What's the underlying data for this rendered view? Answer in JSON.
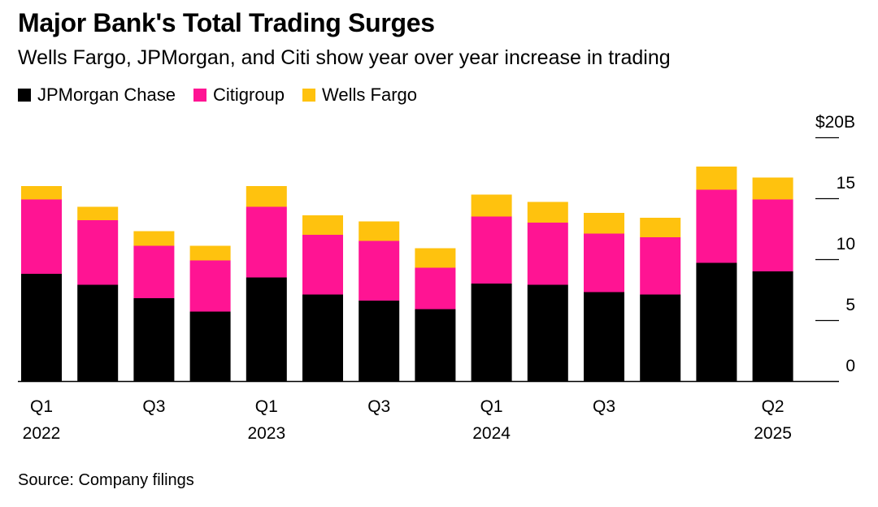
{
  "title": "Major Bank's Total Trading Surges",
  "subtitle": "Wells Fargo, JPMorgan, and Citi show year over year increase in trading",
  "source": "Source: Company filings",
  "colors": {
    "jpmorgan": "#000000",
    "citigroup": "#ff1493",
    "wellsfargo": "#ffc20e"
  },
  "chart_data": {
    "type": "bar",
    "stacked": true,
    "categories": [
      "Q1 2022",
      "Q2 2022",
      "Q3 2022",
      "Q4 2022",
      "Q1 2023",
      "Q2 2023",
      "Q3 2023",
      "Q4 2023",
      "Q1 2024",
      "Q2 2024",
      "Q3 2024",
      "Q4 2024",
      "Q1 2025",
      "Q2 2025"
    ],
    "series": [
      {
        "name": "JPMorgan Chase",
        "color": "#000000",
        "values": [
          8.8,
          7.9,
          6.8,
          5.7,
          8.5,
          7.1,
          6.6,
          5.9,
          8.0,
          7.9,
          7.3,
          7.1,
          9.7,
          9.0
        ]
      },
      {
        "name": "Citigroup",
        "color": "#ff1493",
        "values": [
          6.1,
          5.3,
          4.3,
          4.2,
          5.8,
          4.9,
          4.9,
          3.4,
          5.5,
          5.1,
          4.8,
          4.7,
          6.0,
          5.9
        ]
      },
      {
        "name": "Wells Fargo",
        "color": "#ffc20e",
        "values": [
          1.1,
          1.1,
          1.2,
          1.2,
          1.7,
          1.6,
          1.6,
          1.6,
          1.8,
          1.7,
          1.7,
          1.6,
          1.9,
          1.8
        ]
      }
    ],
    "ylim": [
      0,
      20
    ],
    "yticks": [
      {
        "value": 20,
        "label": "$20B"
      },
      {
        "value": 15,
        "label": "15"
      },
      {
        "value": 10,
        "label": "10"
      },
      {
        "value": 5,
        "label": "5"
      },
      {
        "value": 0,
        "label": "0"
      }
    ],
    "xtick_labels": [
      {
        "index": 0,
        "line1": "Q1",
        "line2": "2022"
      },
      {
        "index": 2,
        "line1": "Q3",
        "line2": ""
      },
      {
        "index": 4,
        "line1": "Q1",
        "line2": "2023"
      },
      {
        "index": 6,
        "line1": "Q3",
        "line2": ""
      },
      {
        "index": 8,
        "line1": "Q1",
        "line2": "2024"
      },
      {
        "index": 10,
        "line1": "Q3",
        "line2": ""
      },
      {
        "index": 13,
        "line1": "Q2",
        "line2": "2025"
      }
    ],
    "legend_position": "top-left",
    "grid": false
  }
}
